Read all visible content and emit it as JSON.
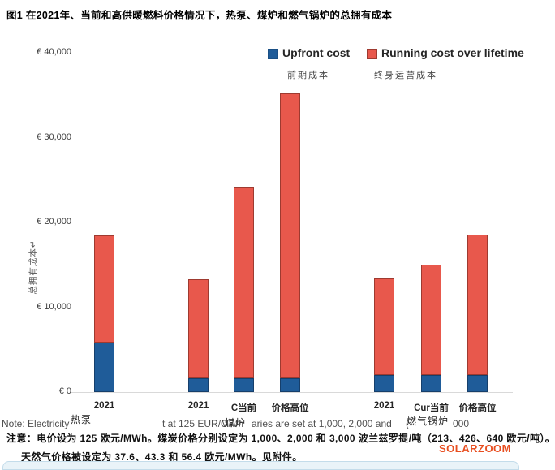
{
  "title": "图1 在2021年、当前和高供暖燃料价格情况下，热泵、煤炉和燃气锅炉的总拥有成本",
  "legend": {
    "items": [
      {
        "label": "Upfront cost",
        "label_zh": "前期成本",
        "color": "#1f5c99",
        "border_color": "#163f6b"
      },
      {
        "label": "Running cost over lifetime",
        "label_zh": "终身运营成本",
        "color": "#e8584c",
        "border_color": "#9e3a30"
      }
    ]
  },
  "y_axis": {
    "label": "总拥有成本↵",
    "ticks": [
      "€ 40,000",
      "€ 30,000",
      "€ 20,000",
      "€ 10,000",
      "€ 0"
    ],
    "tick_values": [
      40000,
      30000,
      20000,
      10000,
      0
    ],
    "max": 40000
  },
  "chart_data": {
    "type": "bar",
    "stacked": true,
    "unit": "EUR",
    "ylim": [
      0,
      40000
    ],
    "series_names": [
      "Upfront cost",
      "Running cost over lifetime"
    ],
    "series_colors": [
      "#1f5c99",
      "#e8584c"
    ],
    "groups": [
      {
        "group_label": "热泵",
        "bars": [
          {
            "scenario": "2021",
            "upfront": 5800,
            "running": 12700,
            "total": 18500
          }
        ]
      },
      {
        "group_label": "煤炉",
        "bars": [
          {
            "scenario": "2021",
            "upfront": 1600,
            "running": 11700,
            "total": 13300
          },
          {
            "scenario": "C当前",
            "upfront": 1600,
            "running": 22600,
            "total": 24200
          },
          {
            "scenario": "价格高位",
            "upfront": 1600,
            "running": 33600,
            "total": 35200
          }
        ]
      },
      {
        "group_label": "燃气锅炉",
        "bars": [
          {
            "scenario": "2021",
            "upfront": 2000,
            "running": 11400,
            "total": 13400
          },
          {
            "scenario": "Cur当前",
            "upfront": 2000,
            "running": 13000,
            "total": 15000
          },
          {
            "scenario": "价格高位",
            "upfront": 2000,
            "running": 16600,
            "total": 18600
          }
        ]
      }
    ]
  },
  "clipped_note_fragments": [
    {
      "text": "Note: Electricity"
    },
    {
      "text": "t at 125 EUR/MWh"
    },
    {
      "text": "C"
    },
    {
      "text": "aries are set at 1,000, 2,000 and"
    },
    {
      "text": "("
    },
    {
      "text": "000"
    }
  ],
  "notes": {
    "line1": "注意：电价设为 125 欧元/MWh。煤炭价格分别设定为 1,000、2,000 和 3,000 波兰兹罗提/吨（213、426、640 欧元/吨）。",
    "line2": "天然气价格被设定为 37.6、43.3 和 56.4 欧元/MWh。见附件。"
  },
  "watermark": "SOLARZOOM"
}
